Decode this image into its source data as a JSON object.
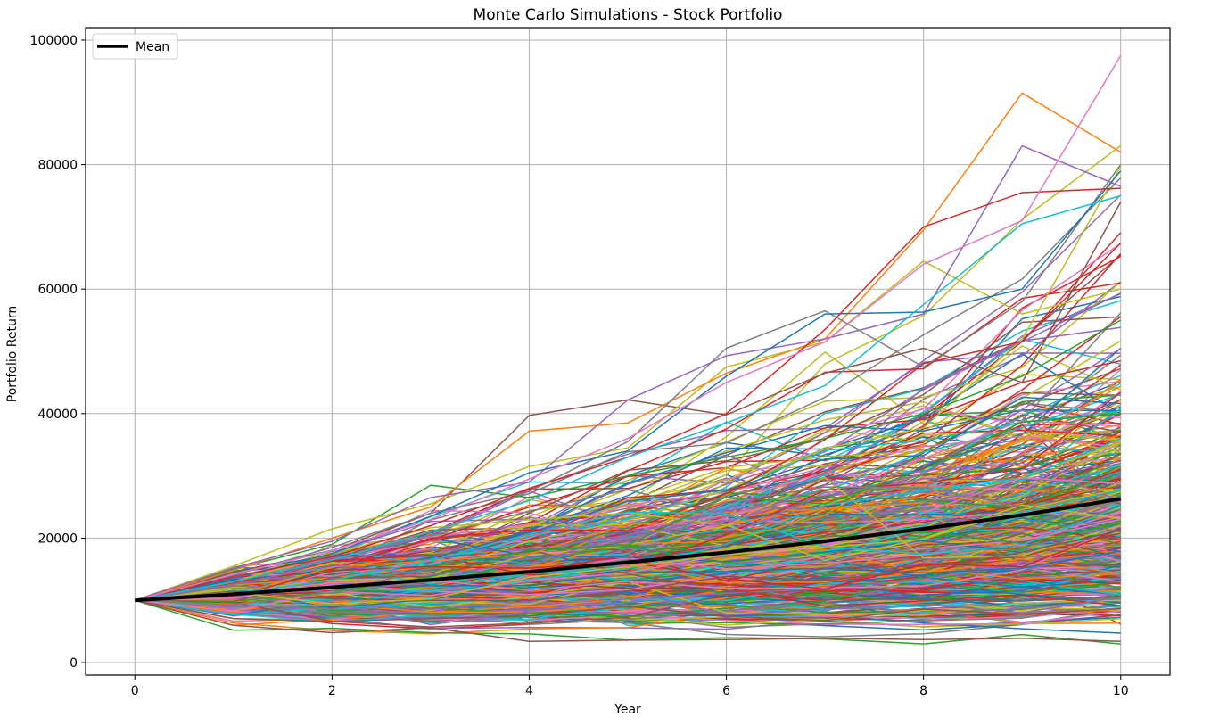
{
  "chart_data": {
    "type": "line",
    "title": "Monte Carlo Simulations - Stock Portfolio",
    "xlabel": "Year",
    "ylabel": "Portfolio Return",
    "xlim": [
      -0.5,
      10.5
    ],
    "ylim": [
      -2000,
      102000
    ],
    "xticks": [
      0,
      2,
      4,
      6,
      8,
      10
    ],
    "yticks": [
      0,
      20000,
      40000,
      60000,
      80000,
      100000
    ],
    "xtick_labels": [
      "0",
      "2",
      "4",
      "6",
      "8",
      "10"
    ],
    "ytick_labels": [
      "0",
      "20000",
      "40000",
      "60000",
      "80000",
      "100000"
    ],
    "grid": true,
    "legend": {
      "position": "top-left",
      "entries": [
        "Mean"
      ]
    },
    "colors": [
      "#1f77b4",
      "#ff7f0e",
      "#2ca02c",
      "#d62728",
      "#9467bd",
      "#8c564b",
      "#e377c2",
      "#7f7f7f",
      "#bcbd22",
      "#17becf"
    ],
    "mean_color": "#000000",
    "simulation_count_drawn": 600,
    "years": [
      0,
      1,
      2,
      3,
      4,
      5,
      6,
      7,
      8,
      9,
      10
    ],
    "start_value": 10000,
    "mean": {
      "name": "Mean",
      "values": [
        10000,
        11000,
        12100,
        13300,
        14600,
        16100,
        17700,
        19500,
        21500,
        23700,
        26300
      ]
    },
    "highlighted_series": [
      {
        "values": [
          10000,
          15000,
          19000,
          28500,
          26500,
          30000,
          33000,
          36000,
          40000,
          46000,
          55000
        ]
      },
      {
        "values": [
          10000,
          14500,
          18000,
          24000,
          39700,
          42200,
          39800,
          46500,
          50500,
          45000,
          74000
        ]
      },
      {
        "values": [
          10000,
          15500,
          21500,
          25500,
          31500,
          34500,
          47500,
          51500,
          64500,
          56000,
          60000
        ]
      },
      {
        "values": [
          10000,
          14800,
          20000,
          25000,
          37200,
          38500,
          46500,
          52000,
          69500,
          91500,
          82000
        ]
      },
      {
        "values": [
          10000,
          15200,
          19500,
          26500,
          29000,
          42200,
          49300,
          52000,
          56000,
          83000,
          76500
        ]
      },
      {
        "values": [
          10000,
          14000,
          18500,
          24000,
          27500,
          35500,
          50500,
          56500,
          47500,
          58000,
          80000
        ]
      },
      {
        "values": [
          10000,
          13500,
          17500,
          23500,
          30500,
          34000,
          46000,
          56000,
          56300,
          60000,
          79000
        ]
      },
      {
        "values": [
          10000,
          13800,
          17000,
          22000,
          28000,
          33000,
          40000,
          53500,
          70000,
          75500,
          76200
        ]
      },
      {
        "values": [
          10000,
          14200,
          18000,
          23000,
          29500,
          36000,
          45000,
          51500,
          64000,
          71000,
          97500
        ]
      },
      {
        "values": [
          10000,
          13000,
          16500,
          21000,
          26000,
          33000,
          38500,
          44500,
          57500,
          70500,
          75000
        ]
      },
      {
        "values": [
          10000,
          5200,
          5500,
          4800,
          4600,
          3600,
          4000,
          3800,
          3000,
          4500,
          3000
        ]
      },
      {
        "values": [
          10000,
          6000,
          4800,
          5600,
          3400,
          3600,
          3700,
          3900,
          3700,
          3900,
          3400
        ]
      }
    ]
  }
}
